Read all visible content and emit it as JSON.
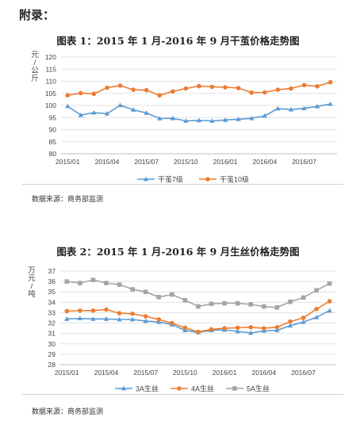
{
  "header": {
    "appendix": "附录："
  },
  "chart_data": [
    {
      "type": "line",
      "title": "图表 1：2015 年 1 月-2016 年 9 月干茧价格走势图",
      "ylabel": "元/公斤",
      "xlabel": "",
      "ylim": [
        80,
        120
      ],
      "yticks": [
        80,
        85,
        90,
        95,
        100,
        105,
        110,
        115,
        120
      ],
      "x_tick_labels": [
        "2015/01",
        "2015/04",
        "2015/07",
        "2015/10",
        "2016/01",
        "2016/04",
        "2016/07"
      ],
      "x_tick_index": [
        0,
        3,
        6,
        9,
        12,
        15,
        18
      ],
      "grid": true,
      "legend": "bottom",
      "series": [
        {
          "name": "干茧7级",
          "color": "#5b9bd5",
          "marker": "triangle",
          "values": [
            99.7,
            96.0,
            97.0,
            96.6,
            100.1,
            98.2,
            96.9,
            94.6,
            94.7,
            93.6,
            93.8,
            93.6,
            94.0,
            94.3,
            94.7,
            95.7,
            98.7,
            98.3,
            98.8,
            99.6,
            100.6
          ]
        },
        {
          "name": "干茧10级",
          "color": "#ed7d31",
          "marker": "circle",
          "values": [
            104.2,
            105.1,
            104.8,
            107.3,
            108.2,
            106.5,
            106.3,
            104.2,
            105.8,
            107.0,
            108.0,
            107.7,
            107.5,
            107.2,
            105.3,
            105.4,
            106.5,
            107.0,
            108.4,
            107.9,
            109.6
          ]
        }
      ],
      "source": "数据来源：商务部监测"
    },
    {
      "type": "line",
      "title": "图表 2：2015 年 1 月-2016 年 9 月生丝价格走势图",
      "ylabel": "万元/吨",
      "xlabel": "",
      "ylim": [
        28,
        37
      ],
      "yticks": [
        28,
        29,
        30,
        31,
        32,
        33,
        34,
        35,
        36,
        37
      ],
      "x_tick_labels": [
        "2015/01",
        "2015/04",
        "2015/07",
        "2015/10",
        "2016/01",
        "2016/04",
        "2016/07"
      ],
      "x_tick_index": [
        0,
        3,
        6,
        9,
        12,
        15,
        18
      ],
      "grid": true,
      "legend": "bottom",
      "series": [
        {
          "name": "3A生丝",
          "color": "#5b9bd5",
          "marker": "triangle",
          "values": [
            32.4,
            32.45,
            32.4,
            32.4,
            32.35,
            32.35,
            32.2,
            32.1,
            31.85,
            31.3,
            31.1,
            31.3,
            31.35,
            31.2,
            31.05,
            31.25,
            31.3,
            31.75,
            32.1,
            32.55,
            33.2
          ]
        },
        {
          "name": "4A生丝",
          "color": "#ed7d31",
          "marker": "circle",
          "values": [
            33.15,
            33.2,
            33.2,
            33.3,
            32.95,
            32.9,
            32.65,
            32.35,
            32.0,
            31.55,
            31.15,
            31.4,
            31.5,
            31.55,
            31.6,
            31.5,
            31.6,
            32.15,
            32.5,
            33.35,
            34.1
          ]
        },
        {
          "name": "5A生丝",
          "color": "#a5a5a5",
          "marker": "square",
          "values": [
            36.0,
            35.85,
            36.15,
            35.85,
            35.7,
            35.25,
            35.0,
            34.5,
            34.75,
            34.2,
            33.6,
            33.85,
            33.9,
            33.9,
            33.8,
            33.6,
            33.5,
            34.05,
            34.45,
            35.15,
            35.8
          ]
        }
      ],
      "source": "数据来源：商务部监测"
    }
  ]
}
